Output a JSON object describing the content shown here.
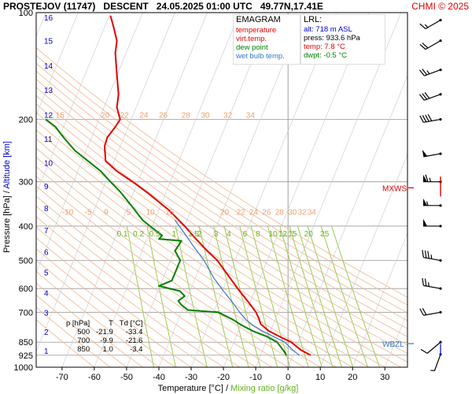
{
  "header": {
    "station": "PROSTEJOV (11747)",
    "mode": "DESCENT",
    "datetime": "24.05.2025 01:00 UTC",
    "coords": "49.77N,17.41E",
    "copyright": "CHMI © 2025"
  },
  "legend": {
    "title": "EMAGRAM",
    "items": [
      {
        "label": "temperature",
        "color": "#e00000"
      },
      {
        "label": "virt.temp.",
        "color": "#e00000"
      },
      {
        "label": "dew point",
        "color": "#008000"
      },
      {
        "label": "wet bulb temp.",
        "color": "#3377cc"
      }
    ]
  },
  "lrl": {
    "title": "LRL:",
    "lines": [
      {
        "text": "alt: 718 m ASL",
        "color": "#0000cc"
      },
      {
        "text": "press: 933.6 hPa",
        "color": "#000000"
      },
      {
        "text": "temp: 7.8 °C",
        "color": "#e00000"
      },
      {
        "text": "dwpt: -0.5 °C",
        "color": "#008000"
      }
    ]
  },
  "summary": {
    "headers": [
      "p [hPa]",
      "T",
      "Td [°C]"
    ],
    "rows": [
      [
        "500",
        "-21.9",
        "-33.4"
      ],
      [
        "700",
        "-9.9",
        "-21.6"
      ],
      [
        "850",
        "1.0",
        "-3.4"
      ]
    ]
  },
  "chart_data": {
    "type": "line",
    "title": "EMAGRAM",
    "xlabel": "Temperature [°C]",
    "xlabel_extra": "Mixing ratio [g/kg]",
    "ylabel": "Pressure [hPa]",
    "ylabel_extra": "Altitude [km]",
    "xlim": [
      -78,
      37
    ],
    "ylim": [
      1000,
      100
    ],
    "y_scale": "log",
    "x_ticks": [
      -70,
      -60,
      -50,
      -40,
      -30,
      -20,
      -10,
      0,
      10,
      20,
      30
    ],
    "p_ticks": [
      100,
      200,
      300,
      400,
      500,
      600,
      700,
      850,
      925,
      1000
    ],
    "alt_ticks": [
      {
        "label": "1",
        "p": 898
      },
      {
        "label": "2",
        "p": 795
      },
      {
        "label": "3",
        "p": 701
      },
      {
        "label": "4",
        "p": 616
      },
      {
        "label": "5",
        "p": 540
      },
      {
        "label": "6",
        "p": 472
      },
      {
        "label": "7",
        "p": 410
      },
      {
        "label": "8",
        "p": 356
      },
      {
        "label": "9",
        "p": 308
      },
      {
        "label": "10",
        "p": 265
      },
      {
        "label": "11",
        "p": 227
      },
      {
        "label": "12",
        "p": 194
      },
      {
        "label": "13",
        "p": 165
      },
      {
        "label": "14",
        "p": 141
      },
      {
        "label": "15",
        "p": 120
      },
      {
        "label": "16",
        "p": 103
      }
    ],
    "mixing_ratio_labels_upper": [
      "0.1",
      "0.2",
      "0.5",
      "1",
      "1.5",
      "2",
      "3",
      "4",
      "6",
      "8",
      "10",
      "12",
      "15",
      "20",
      "25"
    ],
    "theta_labels_200": [
      "15",
      "20",
      "22",
      "24",
      "26",
      "28",
      "30",
      "32",
      "34"
    ],
    "theta_labels_400": [
      "-10",
      "-5",
      "9",
      "5",
      "10",
      "15",
      "20",
      "22",
      "24",
      "26",
      "28",
      "30",
      "32",
      "34"
    ],
    "annotations": [
      {
        "label": "MXWS",
        "p": 312,
        "color": "#e00000"
      },
      {
        "label": "WBZL",
        "p": 858,
        "color": "#3377cc"
      }
    ],
    "series": [
      {
        "name": "temperature",
        "color": "#e00000",
        "points": [
          [
            7.0,
            925
          ],
          [
            4.0,
            895
          ],
          [
            1.0,
            850
          ],
          [
            -2.0,
            825
          ],
          [
            -6.0,
            790
          ],
          [
            -8.5,
            755
          ],
          [
            -9.0,
            730
          ],
          [
            -9.9,
            700
          ],
          [
            -12.0,
            660
          ],
          [
            -15.0,
            610
          ],
          [
            -18.0,
            560
          ],
          [
            -21.9,
            500
          ],
          [
            -25.0,
            470
          ],
          [
            -29.0,
            430
          ],
          [
            -32.0,
            400
          ],
          [
            -37.0,
            360
          ],
          [
            -43.0,
            325
          ],
          [
            -47.0,
            305
          ],
          [
            -53.0,
            280
          ],
          [
            -56.5,
            262
          ],
          [
            -56.8,
            238
          ],
          [
            -56.0,
            225
          ],
          [
            -53.5,
            210
          ],
          [
            -52.0,
            200
          ],
          [
            -53.0,
            185
          ],
          [
            -52.5,
            170
          ],
          [
            -53.0,
            150
          ],
          [
            -53.5,
            130
          ],
          [
            -53.0,
            120
          ],
          [
            -54.0,
            110
          ],
          [
            -55.0,
            102
          ]
        ]
      },
      {
        "name": "dew point",
        "color": "#008000",
        "points": [
          [
            -0.5,
            925
          ],
          [
            -1.5,
            895
          ],
          [
            -3.4,
            850
          ],
          [
            -6.5,
            820
          ],
          [
            -11.0,
            790
          ],
          [
            -14.5,
            760
          ],
          [
            -17.0,
            735
          ],
          [
            -21.6,
            700
          ],
          [
            -31.0,
            690
          ],
          [
            -33.0,
            668
          ],
          [
            -34.0,
            650
          ],
          [
            -32.0,
            630
          ],
          [
            -33.5,
            610
          ],
          [
            -40.0,
            590
          ],
          [
            -36.0,
            570
          ],
          [
            -33.4,
            500
          ],
          [
            -35.0,
            470
          ],
          [
            -33.0,
            440
          ],
          [
            -40.0,
            435
          ],
          [
            -39.0,
            425
          ],
          [
            -42.0,
            405
          ],
          [
            -45.0,
            385
          ],
          [
            -48.0,
            355
          ],
          [
            -52.0,
            320
          ],
          [
            -55.0,
            300
          ],
          [
            -58.0,
            280
          ],
          [
            -62.0,
            262
          ],
          [
            -66.0,
            245
          ],
          [
            -69.5,
            225
          ],
          [
            -72.0,
            210
          ],
          [
            -75.0,
            200
          ]
        ]
      },
      {
        "name": "wet bulb temp.",
        "color": "#3377cc",
        "points": [
          [
            3.5,
            925
          ],
          [
            1.5,
            895
          ],
          [
            -1.0,
            850
          ],
          [
            -4.5,
            820
          ],
          [
            -8.0,
            790
          ],
          [
            -11.0,
            760
          ],
          [
            -13.0,
            735
          ],
          [
            -15.0,
            700
          ],
          [
            -17.0,
            660
          ],
          [
            -20.0,
            610
          ],
          [
            -23.0,
            560
          ],
          [
            -26.0,
            500
          ],
          [
            -29.0,
            460
          ],
          [
            -32.0,
            420
          ],
          [
            -35.0,
            385
          ]
        ]
      }
    ],
    "wind_barbs": [
      {
        "p": 920,
        "dir": 200,
        "spd": 5
      },
      {
        "p": 850,
        "dir": 230,
        "spd": 10
      },
      {
        "p": 700,
        "dir": 260,
        "spd": 20
      },
      {
        "p": 600,
        "dir": 280,
        "spd": 25
      },
      {
        "p": 500,
        "dir": 280,
        "spd": 35
      },
      {
        "p": 400,
        "dir": 270,
        "spd": 50
      },
      {
        "p": 350,
        "dir": 270,
        "spd": 55
      },
      {
        "p": 300,
        "dir": 270,
        "spd": 65
      },
      {
        "p": 250,
        "dir": 260,
        "spd": 50
      },
      {
        "p": 200,
        "dir": 260,
        "spd": 40
      },
      {
        "p": 170,
        "dir": 250,
        "spd": 30
      },
      {
        "p": 145,
        "dir": 250,
        "spd": 25
      },
      {
        "p": 120,
        "dir": 240,
        "spd": 20
      },
      {
        "p": 105,
        "dir": 240,
        "spd": 15
      }
    ]
  }
}
